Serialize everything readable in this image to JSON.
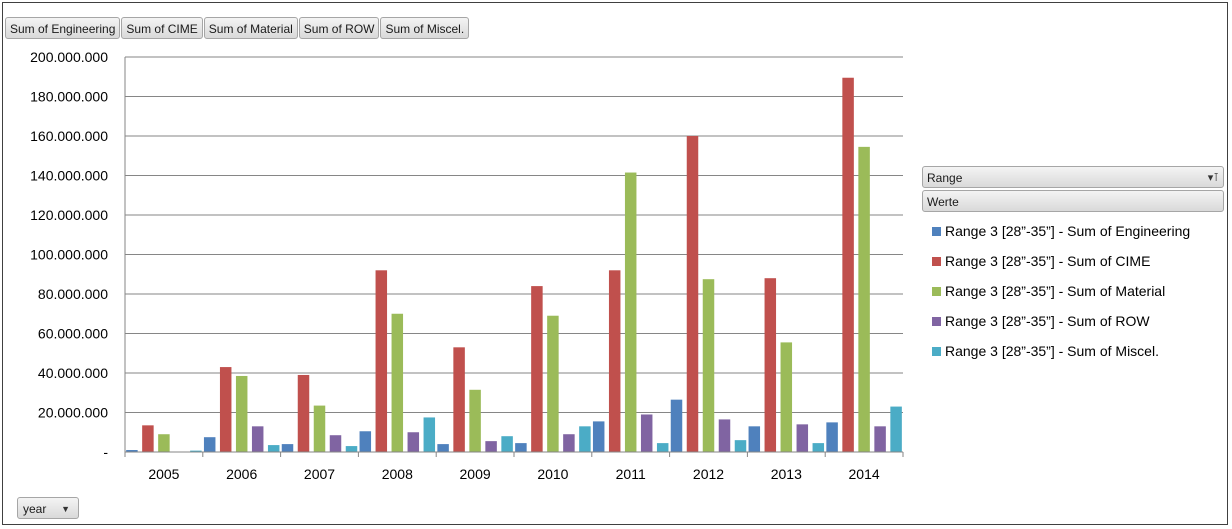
{
  "field_buttons": [
    "Sum of Engineering",
    "Sum of CIME",
    "Sum of Material",
    "Sum of ROW",
    "Sum of Miscel."
  ],
  "legend": {
    "field_label": "Range",
    "values_label": "Werte"
  },
  "axis_button": {
    "label": "year"
  },
  "icons": {
    "filter": "filter-icon",
    "dropdown": "dropdown-arrow-icon"
  },
  "chart_data": {
    "type": "bar",
    "categories": [
      "2005",
      "2006",
      "2007",
      "2008",
      "2009",
      "2010",
      "2011",
      "2012",
      "2013",
      "2014"
    ],
    "ylim": [
      0,
      200000000
    ],
    "y_ticks": [
      0,
      20000000,
      40000000,
      60000000,
      80000000,
      100000000,
      120000000,
      140000000,
      160000000,
      180000000,
      200000000
    ],
    "y_tick_labels": [
      "-",
      "20.000.000",
      "40.000.000",
      "60.000.000",
      "80.000.000",
      "100.000.000",
      "120.000.000",
      "140.000.000",
      "160.000.000",
      "180.000.000",
      "200.000.000"
    ],
    "grid": "horizontal",
    "legend_position": "right",
    "series": [
      {
        "name": "Range 3 [28”-35”] - Sum of Engineering",
        "color": "#4f81bd",
        "values": [
          1000000,
          7500000,
          4000000,
          10500000,
          4000000,
          4500000,
          15500000,
          26500000,
          13000000,
          15000000
        ]
      },
      {
        "name": "Range 3 [28”-35”] - Sum of CIME",
        "color": "#c0504d",
        "values": [
          13500000,
          43000000,
          39000000,
          92000000,
          53000000,
          84000000,
          92000000,
          160000000,
          88000000,
          189500000
        ]
      },
      {
        "name": "Range 3 [28”-35”] - Sum of Material",
        "color": "#9bbb59",
        "values": [
          9000000,
          38500000,
          23500000,
          70000000,
          31500000,
          69000000,
          141500000,
          87500000,
          55500000,
          154500000
        ]
      },
      {
        "name": "Range 3 [28”-35”] - Sum of ROW",
        "color": "#8064a2",
        "values": [
          200000,
          13000000,
          8500000,
          10000000,
          5500000,
          9000000,
          19000000,
          16500000,
          14000000,
          13000000
        ]
      },
      {
        "name": "Range 3 [28”-35”] - Sum of Miscel.",
        "color": "#4bacc6",
        "values": [
          700000,
          3500000,
          3000000,
          17500000,
          8000000,
          13000000,
          4500000,
          6000000,
          4500000,
          23000000
        ]
      }
    ]
  }
}
